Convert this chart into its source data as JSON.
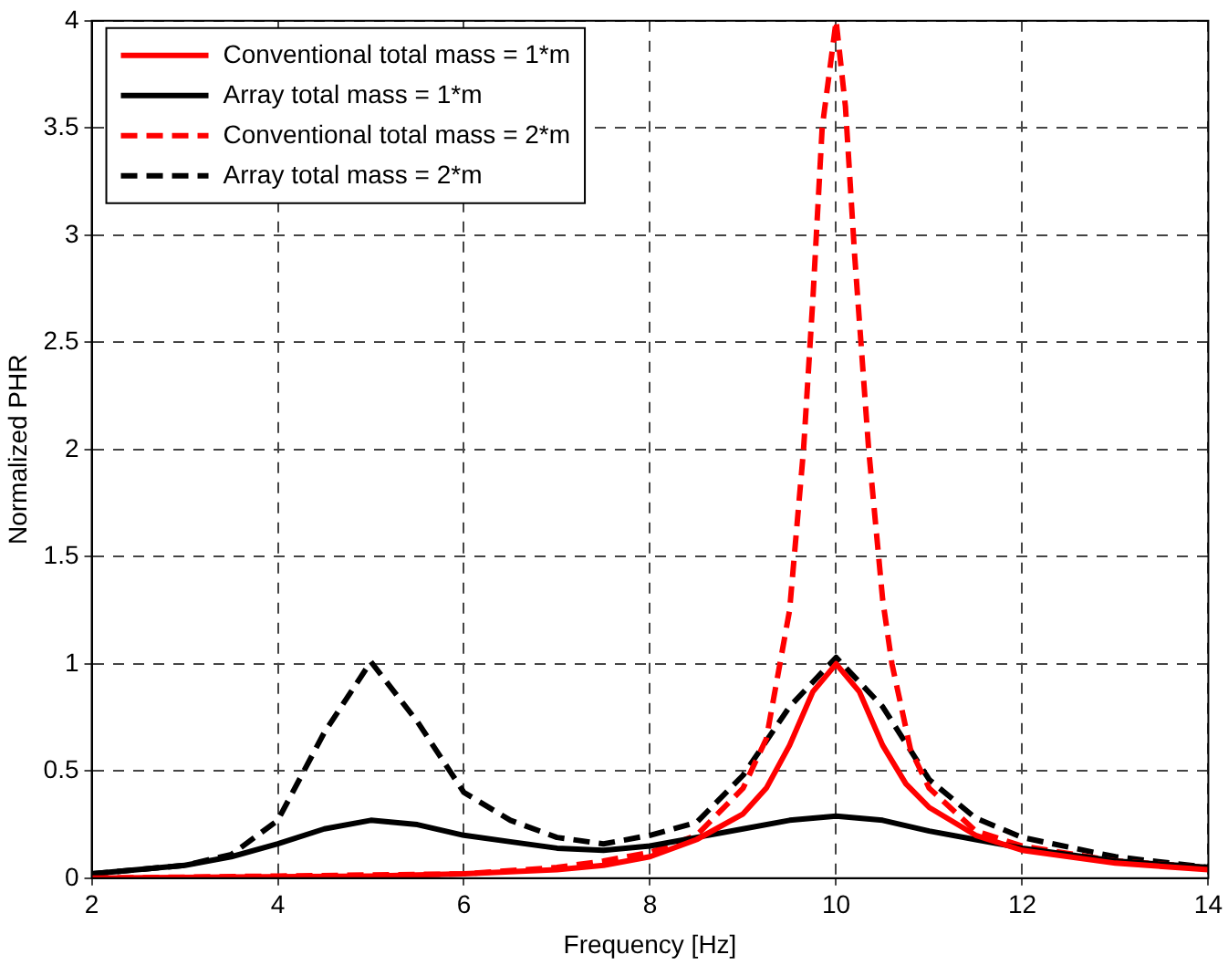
{
  "chart_data": {
    "type": "line",
    "xlabel": "Frequency [Hz]",
    "ylabel": "Normalized PHR",
    "xlim": [
      2,
      14
    ],
    "xticks": [
      2,
      4,
      6,
      8,
      10,
      12,
      14
    ],
    "ylim": [
      0,
      4
    ],
    "yticks": [
      0,
      0.5,
      1,
      1.5,
      2,
      2.5,
      3,
      3.5,
      4
    ],
    "grid": true,
    "legend": "top left",
    "marker": "none",
    "series": [
      {
        "name": "Conventional total mass = 1*m",
        "color": "#ff0000",
        "line_style": "solid",
        "x": [
          2,
          5,
          6,
          7,
          7.5,
          8,
          8.5,
          9,
          9.25,
          9.5,
          9.75,
          10,
          10.25,
          10.5,
          10.75,
          11,
          11.5,
          12,
          13,
          14
        ],
        "values": [
          0,
          0.01,
          0.02,
          0.04,
          0.06,
          0.1,
          0.18,
          0.3,
          0.42,
          0.62,
          0.87,
          1.0,
          0.87,
          0.62,
          0.44,
          0.33,
          0.2,
          0.13,
          0.07,
          0.04
        ]
      },
      {
        "name": "Array total mass = 1*m",
        "color": "#000000",
        "line_style": "solid",
        "x": [
          2,
          3,
          3.5,
          4,
          4.5,
          5,
          5.5,
          6,
          6.5,
          7,
          7.5,
          8,
          8.5,
          9,
          9.5,
          10,
          10.5,
          11,
          11.5,
          12,
          13,
          14
        ],
        "values": [
          0.02,
          0.06,
          0.1,
          0.16,
          0.23,
          0.27,
          0.25,
          0.2,
          0.17,
          0.14,
          0.13,
          0.15,
          0.19,
          0.23,
          0.27,
          0.29,
          0.27,
          0.22,
          0.18,
          0.14,
          0.08,
          0.05
        ]
      },
      {
        "name": "Conventional total mass = 2*m",
        "color": "#ff0000",
        "line_style": "dashed",
        "x": [
          2,
          4,
          6,
          7,
          7.5,
          8,
          8.5,
          9,
          9.25,
          9.5,
          9.65,
          9.75,
          9.85,
          10,
          10.1,
          10.2,
          10.35,
          10.5,
          10.6,
          10.8,
          11,
          11.5,
          12,
          13,
          14
        ],
        "values": [
          0,
          0.01,
          0.02,
          0.05,
          0.08,
          0.12,
          0.2,
          0.42,
          0.65,
          1.25,
          2.0,
          2.7,
          3.5,
          4.0,
          3.6,
          2.9,
          2.0,
          1.3,
          1.0,
          0.6,
          0.42,
          0.22,
          0.15,
          0.08,
          0.05
        ]
      },
      {
        "name": "Array total mass = 2*m",
        "color": "#000000",
        "line_style": "dashed",
        "x": [
          2,
          3,
          3.5,
          4,
          4.5,
          5,
          5.5,
          6,
          6.5,
          7,
          7.5,
          8,
          8.5,
          9,
          9.5,
          10,
          10.5,
          11,
          11.5,
          12,
          13,
          14
        ],
        "values": [
          0.02,
          0.06,
          0.11,
          0.27,
          0.68,
          1.01,
          0.73,
          0.4,
          0.27,
          0.19,
          0.16,
          0.2,
          0.26,
          0.48,
          0.8,
          1.03,
          0.8,
          0.46,
          0.28,
          0.19,
          0.1,
          0.05
        ]
      }
    ]
  }
}
